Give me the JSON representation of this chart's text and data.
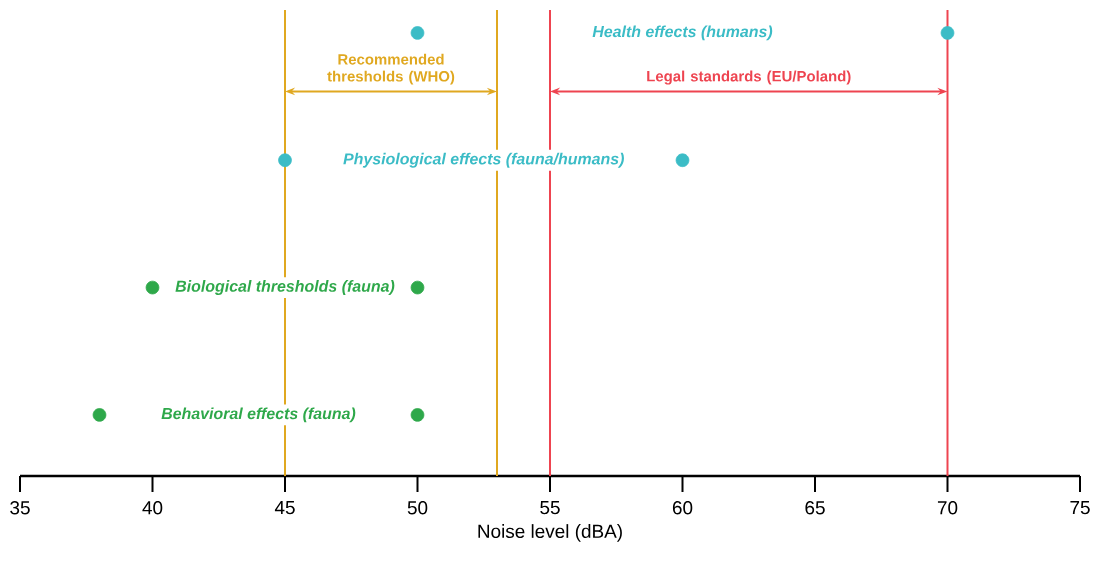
{
  "chart_data": {
    "type": "scatter",
    "orientation": "horizontal",
    "categories": [
      "Health effects (humans)",
      "Physiological effects (fauna/humans)",
      "Biological thresholds (fauna)",
      "Behavioral effects (fauna)"
    ],
    "series": [
      {
        "colors": [
          "#3bbcc6",
          "#3bbcc6",
          "#2ea84a",
          "#2ea84a"
        ],
        "values": [
          50,
          45,
          40,
          38
        ]
      },
      {
        "colors": [
          "#3bbcc6",
          "#3bbcc6",
          "#2ea84a",
          "#2ea84a"
        ],
        "values": [
          70,
          60,
          50,
          50
        ]
      }
    ],
    "xlim": [
      35,
      75
    ],
    "xticks": [
      35,
      40,
      45,
      50,
      55,
      60,
      65,
      70,
      75
    ],
    "xlabel": "Noise level (dBA)",
    "marker": "circle",
    "ref_lines": [
      {
        "axis": "x",
        "value": 45,
        "color": "#e0a820",
        "label": "Recommended thresholds (WHO)"
      },
      {
        "axis": "x",
        "value": 53,
        "color": "#e0a820"
      },
      {
        "axis": "x",
        "value": 55,
        "color": "#ee4450",
        "label": "Legal standards (EU/Poland)"
      },
      {
        "axis": "x",
        "value": 70,
        "color": "#ee4450"
      }
    ]
  }
}
